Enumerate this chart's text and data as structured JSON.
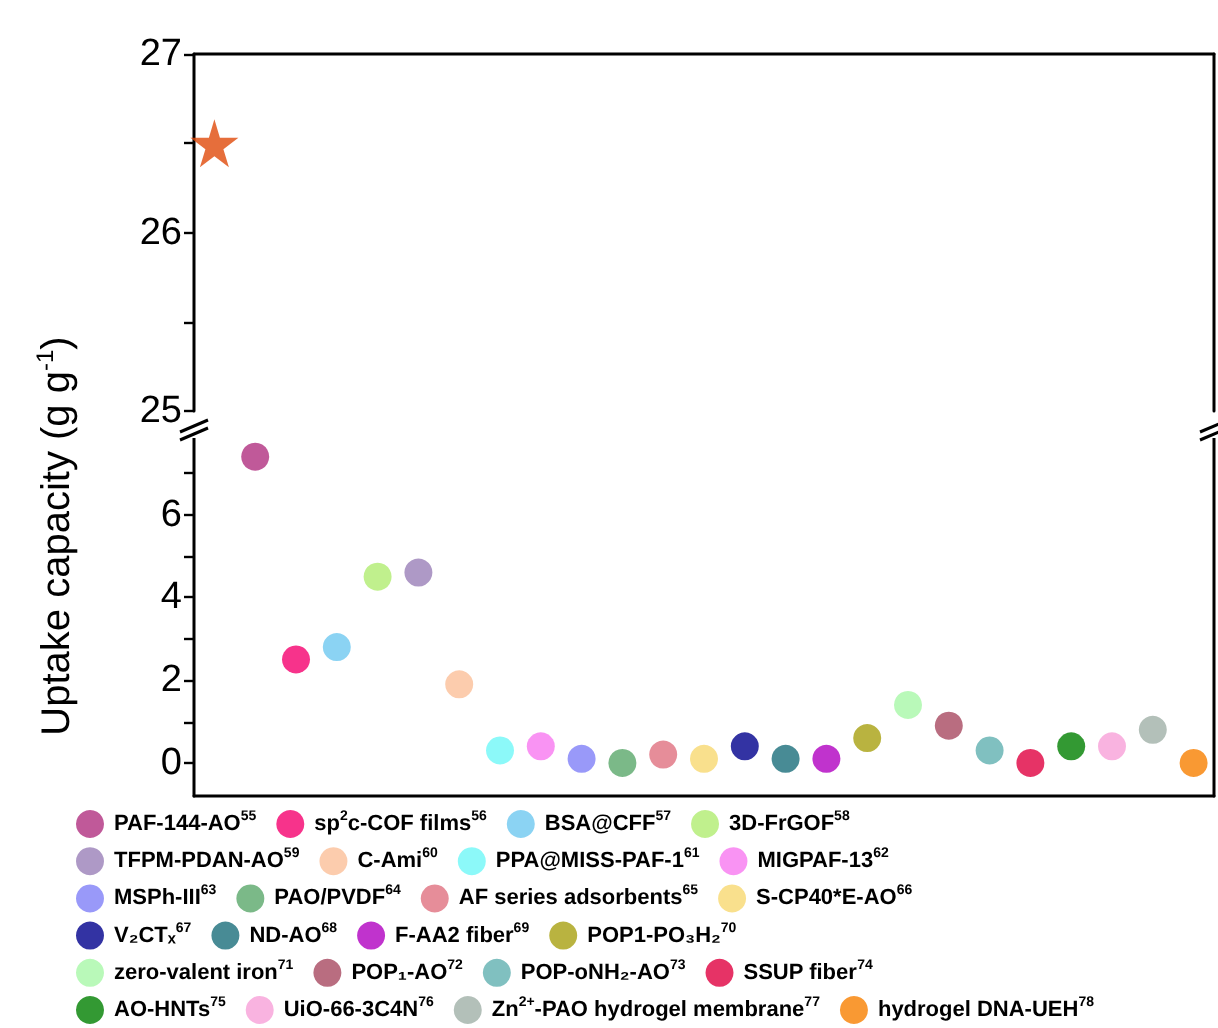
{
  "chart_data": [
    {
      "type": "scatter",
      "categories": [
        null,
        null,
        null,
        null,
        null,
        null,
        null,
        null,
        null,
        null,
        null,
        null,
        null,
        null,
        null,
        null,
        null,
        null,
        null,
        null,
        null,
        null,
        null,
        null,
        null
      ],
      "ylim": [
        25,
        27
      ],
      "yticks": [
        25,
        {
          "value": 25.5,
          "label": null
        },
        26,
        {
          "value": 26.5,
          "label": null
        },
        27
      ],
      "grid": false,
      "marker": "star",
      "tick_labels": "y",
      "series": [
        {
          "color": "#e04a0a",
          "values": [
            26.5,
            null,
            null,
            null,
            null,
            null,
            null,
            null,
            null,
            null,
            null,
            null,
            null,
            null,
            null,
            null,
            null,
            null,
            null,
            null,
            null,
            null,
            null,
            null,
            null
          ]
        }
      ]
    },
    {
      "type": "scatter",
      "ylabel": "Uptake capacity (g g$^{-1}$)",
      "categories": [
        null,
        null,
        null,
        null,
        null,
        null,
        null,
        null,
        null,
        null,
        null,
        null,
        null,
        null,
        null,
        null,
        null,
        null,
        null,
        null,
        null,
        null,
        null,
        null,
        null
      ],
      "ylim": [
        -0.8,
        7.9
      ],
      "yticks": [
        0,
        {
          "value": 1,
          "label": null
        },
        2,
        {
          "value": 3,
          "label": null
        },
        4,
        {
          "value": 5,
          "label": null
        },
        6,
        {
          "value": 7,
          "label": null
        }
      ],
      "grid": false,
      "legend": "bottom",
      "marker": "circle",
      "tick_labels": "y",
      "series": [
        {
          "name": "PAF-144-AO$^{55}$",
          "color": "#b0307f",
          "values": [
            null,
            7.4,
            null,
            null,
            null,
            null,
            null,
            null,
            null,
            null,
            null,
            null,
            null,
            null,
            null,
            null,
            null,
            null,
            null,
            null,
            null,
            null,
            null,
            null,
            null
          ]
        },
        {
          "name": "sp$^{2}$c-COF films$^{56}$",
          "color": "#f5006e",
          "values": [
            null,
            null,
            2.5,
            null,
            null,
            null,
            null,
            null,
            null,
            null,
            null,
            null,
            null,
            null,
            null,
            null,
            null,
            null,
            null,
            null,
            null,
            null,
            null,
            null,
            null
          ]
        },
        {
          "name": "BSA@CFF$^{57}$",
          "color": "#6ec8f0",
          "values": [
            null,
            null,
            null,
            2.8,
            null,
            null,
            null,
            null,
            null,
            null,
            null,
            null,
            null,
            null,
            null,
            null,
            null,
            null,
            null,
            null,
            null,
            null,
            null,
            null,
            null
          ]
        },
        {
          "name": "3D-FrGOF$^{58}$",
          "color": "#b0ec70",
          "values": [
            null,
            null,
            null,
            null,
            4.5,
            null,
            null,
            null,
            null,
            null,
            null,
            null,
            null,
            null,
            null,
            null,
            null,
            null,
            null,
            null,
            null,
            null,
            null,
            null,
            null
          ]
        },
        {
          "name": "TFPM-PDAN-AO$^{59}$",
          "color": "#9a7fb8",
          "values": [
            null,
            null,
            null,
            null,
            null,
            4.6,
            null,
            null,
            null,
            null,
            null,
            null,
            null,
            null,
            null,
            null,
            null,
            null,
            null,
            null,
            null,
            null,
            null,
            null,
            null
          ]
        },
        {
          "name": "C-Ami$^{60}$",
          "color": "#fbbf98",
          "values": [
            null,
            null,
            null,
            null,
            null,
            null,
            1.9,
            null,
            null,
            null,
            null,
            null,
            null,
            null,
            null,
            null,
            null,
            null,
            null,
            null,
            null,
            null,
            null,
            null,
            null
          ]
        },
        {
          "name": "PPA@MISS-PAF-1$^{61}$",
          "color": "#6ff8f8",
          "values": [
            null,
            null,
            null,
            null,
            null,
            null,
            null,
            0.3,
            null,
            null,
            null,
            null,
            null,
            null,
            null,
            null,
            null,
            null,
            null,
            null,
            null,
            null,
            null,
            null,
            null
          ]
        },
        {
          "name": "MIGPAF-13$^{62}$",
          "color": "#f878f0",
          "values": [
            null,
            null,
            null,
            null,
            null,
            null,
            null,
            null,
            0.4,
            null,
            null,
            null,
            null,
            null,
            null,
            null,
            null,
            null,
            null,
            null,
            null,
            null,
            null,
            null,
            null
          ]
        },
        {
          "name": "MSPh-III$^{63}$",
          "color": "#8080f8",
          "values": [
            null,
            null,
            null,
            null,
            null,
            null,
            null,
            null,
            null,
            0.1,
            null,
            null,
            null,
            null,
            null,
            null,
            null,
            null,
            null,
            null,
            null,
            null,
            null,
            null,
            null
          ]
        },
        {
          "name": "PAO/PVDF$^{64}$",
          "color": "#5aa86a",
          "values": [
            null,
            null,
            null,
            null,
            null,
            null,
            null,
            null,
            null,
            null,
            0.0,
            null,
            null,
            null,
            null,
            null,
            null,
            null,
            null,
            null,
            null,
            null,
            null,
            null,
            null
          ]
        },
        {
          "name": "AF series adsorbents$^{65}$",
          "color": "#e07080",
          "values": [
            null,
            null,
            null,
            null,
            null,
            null,
            null,
            null,
            null,
            null,
            null,
            0.2,
            null,
            null,
            null,
            null,
            null,
            null,
            null,
            null,
            null,
            null,
            null,
            null,
            null
          ]
        },
        {
          "name": "S-CP40*E-AO$^{66}$",
          "color": "#f8d870",
          "values": [
            null,
            null,
            null,
            null,
            null,
            null,
            null,
            null,
            null,
            null,
            null,
            null,
            0.1,
            null,
            null,
            null,
            null,
            null,
            null,
            null,
            null,
            null,
            null,
            null,
            null
          ]
        },
        {
          "name": "V₂CTₓ$^{67}$",
          "color": "#00008c",
          "values": [
            null,
            null,
            null,
            null,
            null,
            null,
            null,
            null,
            null,
            null,
            null,
            null,
            null,
            0.4,
            null,
            null,
            null,
            null,
            null,
            null,
            null,
            null,
            null,
            null,
            null
          ]
        },
        {
          "name": "ND-AO$^{68}$",
          "color": "#1a6e7a",
          "values": [
            null,
            null,
            null,
            null,
            null,
            null,
            null,
            null,
            null,
            null,
            null,
            null,
            null,
            null,
            0.1,
            null,
            null,
            null,
            null,
            null,
            null,
            null,
            null,
            null,
            null
          ]
        },
        {
          "name": "F-AA2 fiber$^{69}$",
          "color": "#b000c0",
          "values": [
            null,
            null,
            null,
            null,
            null,
            null,
            null,
            null,
            null,
            null,
            null,
            null,
            null,
            null,
            null,
            0.1,
            null,
            null,
            null,
            null,
            null,
            null,
            null,
            null,
            null
          ]
        },
        {
          "name": "POP1-PO₃H₂$^{70}$",
          "color": "#a8a010",
          "values": [
            null,
            null,
            null,
            null,
            null,
            null,
            null,
            null,
            null,
            null,
            null,
            null,
            null,
            null,
            null,
            null,
            0.6,
            null,
            null,
            null,
            null,
            null,
            null,
            null,
            null
          ]
        },
        {
          "name": "zero-valent iron$^{71}$",
          "color": "#a8f8a8",
          "values": [
            null,
            null,
            null,
            null,
            null,
            null,
            null,
            null,
            null,
            null,
            null,
            null,
            null,
            null,
            null,
            null,
            null,
            1.4,
            null,
            null,
            null,
            null,
            null,
            null,
            null
          ]
        },
        {
          "name": "POP₁-AO$^{72}$",
          "color": "#a84860",
          "values": [
            null,
            null,
            null,
            null,
            null,
            null,
            null,
            null,
            null,
            null,
            null,
            null,
            null,
            null,
            null,
            null,
            null,
            null,
            0.9,
            null,
            null,
            null,
            null,
            null,
            null
          ]
        },
        {
          "name": "POP-oNH₂-AO$^{73}$",
          "color": "#60b0b0",
          "values": [
            null,
            null,
            null,
            null,
            null,
            null,
            null,
            null,
            null,
            null,
            null,
            null,
            null,
            null,
            null,
            null,
            null,
            null,
            null,
            0.3,
            null,
            null,
            null,
            null,
            null
          ]
        },
        {
          "name": "SSUP fiber$^{74}$",
          "color": "#e00040",
          "values": [
            null,
            null,
            null,
            null,
            null,
            null,
            null,
            null,
            null,
            null,
            null,
            null,
            null,
            null,
            null,
            null,
            null,
            null,
            null,
            null,
            0.0,
            null,
            null,
            null,
            null
          ]
        },
        {
          "name": "AO-HNTs$^{75}$",
          "color": "#008000",
          "values": [
            null,
            null,
            null,
            null,
            null,
            null,
            null,
            null,
            null,
            null,
            null,
            null,
            null,
            null,
            null,
            null,
            null,
            null,
            null,
            null,
            null,
            0.4,
            null,
            null,
            null
          ]
        },
        {
          "name": "UiO-66-3C4N$^{76}$",
          "color": "#f8a0d8",
          "values": [
            null,
            null,
            null,
            null,
            null,
            null,
            null,
            null,
            null,
            null,
            null,
            null,
            null,
            null,
            null,
            null,
            null,
            null,
            null,
            null,
            null,
            null,
            0.4,
            null,
            null
          ]
        },
        {
          "name": "Zn$^{2+}$-PAO hydrogel membrane$^{77}$",
          "color": "#a0b0a8",
          "values": [
            null,
            null,
            null,
            null,
            null,
            null,
            null,
            null,
            null,
            null,
            null,
            null,
            null,
            null,
            null,
            null,
            null,
            null,
            null,
            null,
            null,
            null,
            null,
            0.8,
            null
          ]
        },
        {
          "name": "hydrogel DNA-UEH$^{78}$",
          "color": "#f88000",
          "values": [
            null,
            null,
            null,
            null,
            null,
            null,
            null,
            null,
            null,
            null,
            null,
            null,
            null,
            null,
            null,
            null,
            null,
            null,
            null,
            null,
            null,
            null,
            null,
            null,
            0.0
          ]
        }
      ]
    }
  ]
}
